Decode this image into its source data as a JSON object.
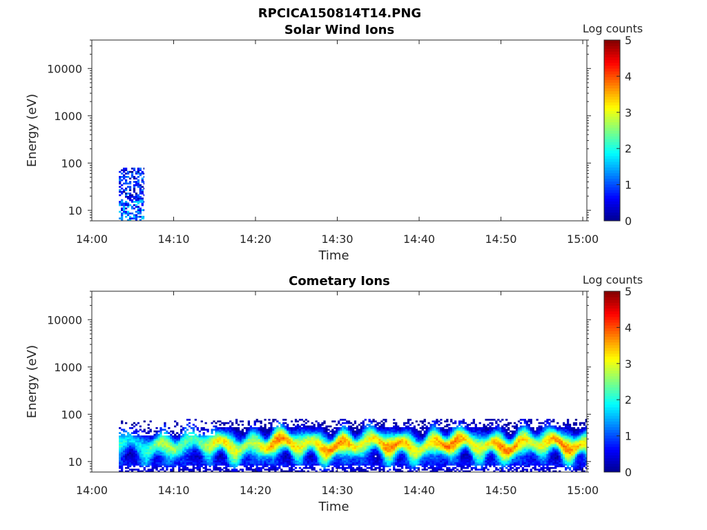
{
  "figure": {
    "title": "RPCICA150814T14.PNG"
  },
  "colormap": [
    "#00008f",
    "#0000ff",
    "#0080ff",
    "#00ffff",
    "#80ff80",
    "#ffff00",
    "#ff8000",
    "#ff0000",
    "#800000"
  ],
  "chart_data": [
    {
      "type": "heatmap",
      "title": "Solar Wind Ions",
      "xlabel": "Time",
      "ylabel": "Energy (eV)",
      "x_ticks": [
        "14:00",
        "14:10",
        "14:20",
        "14:30",
        "14:40",
        "14:50",
        "15:00"
      ],
      "x_tick_minutes": [
        0,
        10,
        20,
        30,
        40,
        50,
        60
      ],
      "xlim_minutes": [
        0,
        60.5
      ],
      "y_scale": "log",
      "y_ticks": [
        "10",
        "100",
        "1000",
        "10000"
      ],
      "y_tick_values": [
        10,
        100,
        1000,
        10000
      ],
      "ylim": [
        6,
        40000
      ],
      "colorbar": {
        "label": "Log counts",
        "ticks": [
          "0",
          "1",
          "2",
          "3",
          "4",
          "5"
        ],
        "range": [
          0,
          5
        ]
      },
      "data_extent": {
        "start_minute": 3.3,
        "end_minute": 6.4,
        "energy_min": 6,
        "energy_max": 80
      },
      "description_levels": {
        "typical_log_counts": [
          0,
          1.5
        ]
      }
    },
    {
      "type": "heatmap",
      "title": "Cometary Ions",
      "xlabel": "Time",
      "ylabel": "Energy (eV)",
      "x_ticks": [
        "14:00",
        "14:10",
        "14:20",
        "14:30",
        "14:40",
        "14:50",
        "15:00"
      ],
      "x_tick_minutes": [
        0,
        10,
        20,
        30,
        40,
        50,
        60
      ],
      "xlim_minutes": [
        0,
        60.5
      ],
      "y_scale": "log",
      "y_ticks": [
        "10",
        "100",
        "1000",
        "10000"
      ],
      "y_tick_values": [
        10,
        100,
        1000,
        10000
      ],
      "ylim": [
        6,
        40000
      ],
      "colorbar": {
        "label": "Log counts",
        "ticks": [
          "0",
          "1",
          "2",
          "3",
          "4",
          "5"
        ],
        "range": [
          0,
          5
        ]
      },
      "data_extent": {
        "start_minute": 3.3,
        "end_minute": 60.5,
        "energy_min": 6,
        "energy_max": 80
      },
      "peak_energy_eV": 20,
      "peak_log_counts_range": [
        2.5,
        3.8
      ]
    }
  ]
}
